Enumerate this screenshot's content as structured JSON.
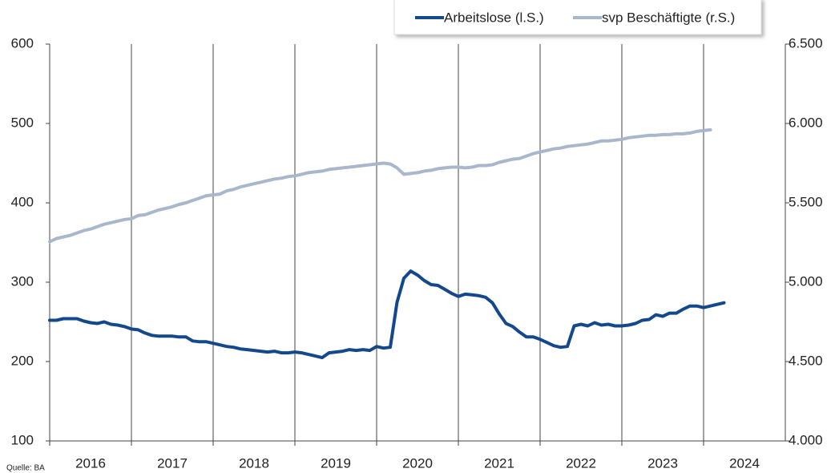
{
  "chart_data": {
    "type": "line",
    "source": "Quelle: BA",
    "x": [
      2016,
      2016.083,
      2016.167,
      2016.25,
      2016.333,
      2016.417,
      2016.5,
      2016.583,
      2016.667,
      2016.75,
      2016.833,
      2016.917,
      2017,
      2017.083,
      2017.167,
      2017.25,
      2017.333,
      2017.417,
      2017.5,
      2017.583,
      2017.667,
      2017.75,
      2017.833,
      2017.917,
      2018,
      2018.083,
      2018.167,
      2018.25,
      2018.333,
      2018.417,
      2018.5,
      2018.583,
      2018.667,
      2018.75,
      2018.833,
      2018.917,
      2019,
      2019.083,
      2019.167,
      2019.25,
      2019.333,
      2019.417,
      2019.5,
      2019.583,
      2019.667,
      2019.75,
      2019.833,
      2019.917,
      2020,
      2020.083,
      2020.167,
      2020.25,
      2020.333,
      2020.417,
      2020.5,
      2020.583,
      2020.667,
      2020.75,
      2020.833,
      2020.917,
      2021,
      2021.083,
      2021.167,
      2021.25,
      2021.333,
      2021.417,
      2021.5,
      2021.583,
      2021.667,
      2021.75,
      2021.833,
      2021.917,
      2022,
      2022.083,
      2022.167,
      2022.25,
      2022.333,
      2022.417,
      2022.5,
      2022.583,
      2022.667,
      2022.75,
      2022.833,
      2022.917,
      2023,
      2023.083,
      2023.167,
      2023.25,
      2023.333,
      2023.417,
      2023.5,
      2023.583,
      2023.667,
      2023.75,
      2023.833,
      2023.917,
      2024,
      2024.083,
      2024.167,
      2024.25
    ],
    "series": [
      {
        "name": "Arbeitslose (l.S.)",
        "color": "#13498c",
        "values": [
          252,
          252,
          254,
          254,
          254,
          251,
          249,
          248,
          250,
          247,
          246,
          244,
          241,
          240,
          236,
          233,
          232,
          232,
          232,
          231,
          231,
          226,
          225,
          225,
          223,
          221,
          219,
          218,
          216,
          215,
          214,
          213,
          212,
          213,
          211,
          211,
          212,
          211,
          209,
          207,
          205,
          211,
          212,
          213,
          215,
          214,
          215,
          214,
          219,
          217,
          218,
          275,
          305,
          314,
          309,
          302,
          297,
          296,
          291,
          286,
          282,
          285,
          284,
          283,
          281,
          274,
          260,
          248,
          244,
          237,
          231,
          231,
          228,
          224,
          220,
          218,
          219,
          245,
          247,
          245,
          249,
          246,
          247,
          245,
          245,
          246,
          248,
          252,
          253,
          259,
          257,
          261,
          261,
          266,
          270,
          270,
          268,
          270,
          272,
          274
        ]
      },
      {
        "name": "svp Beschäftigte (r.S.)",
        "color": "#a9b7cc",
        "axis": "y2",
        "values": [
          5255,
          5275,
          5285,
          5295,
          5310,
          5325,
          5335,
          5350,
          5365,
          5375,
          5385,
          5395,
          5400,
          5420,
          5425,
          5440,
          5455,
          5465,
          5475,
          5490,
          5500,
          5515,
          5530,
          5545,
          5550,
          5555,
          5575,
          5585,
          5600,
          5610,
          5620,
          5630,
          5640,
          5650,
          5655,
          5665,
          5670,
          5680,
          5690,
          5695,
          5700,
          5710,
          5715,
          5720,
          5725,
          5730,
          5735,
          5740,
          5745,
          5750,
          5745,
          5720,
          5680,
          5685,
          5690,
          5700,
          5705,
          5715,
          5720,
          5725,
          5725,
          5720,
          5725,
          5735,
          5735,
          5740,
          5755,
          5765,
          5775,
          5780,
          5795,
          5810,
          5820,
          5830,
          5840,
          5845,
          5855,
          5860,
          5865,
          5870,
          5880,
          5890,
          5890,
          5895,
          5900,
          5910,
          5915,
          5920,
          5925,
          5925,
          5930,
          5930,
          5935,
          5935,
          5940,
          5950,
          5955,
          5960,
          null,
          null
        ]
      }
    ],
    "xlim": [
      2016,
      2025
    ],
    "xticks": [
      2016,
      2017,
      2018,
      2019,
      2020,
      2021,
      2022,
      2023,
      2024
    ],
    "ylim": [
      100,
      600
    ],
    "yticks": [
      100,
      200,
      300,
      400,
      500,
      600
    ],
    "y2lim": [
      4000,
      6500
    ],
    "y2ticks": [
      {
        "value": 4000,
        "label": "4.000"
      },
      {
        "value": 4500,
        "label": "4.500"
      },
      {
        "value": 5000,
        "label": "5.000"
      },
      {
        "value": 5500,
        "label": "5.500"
      },
      {
        "value": 6000,
        "label": "6.000"
      },
      {
        "value": 6500,
        "label": "6.500"
      }
    ],
    "grid": true,
    "legend": "top-right"
  }
}
